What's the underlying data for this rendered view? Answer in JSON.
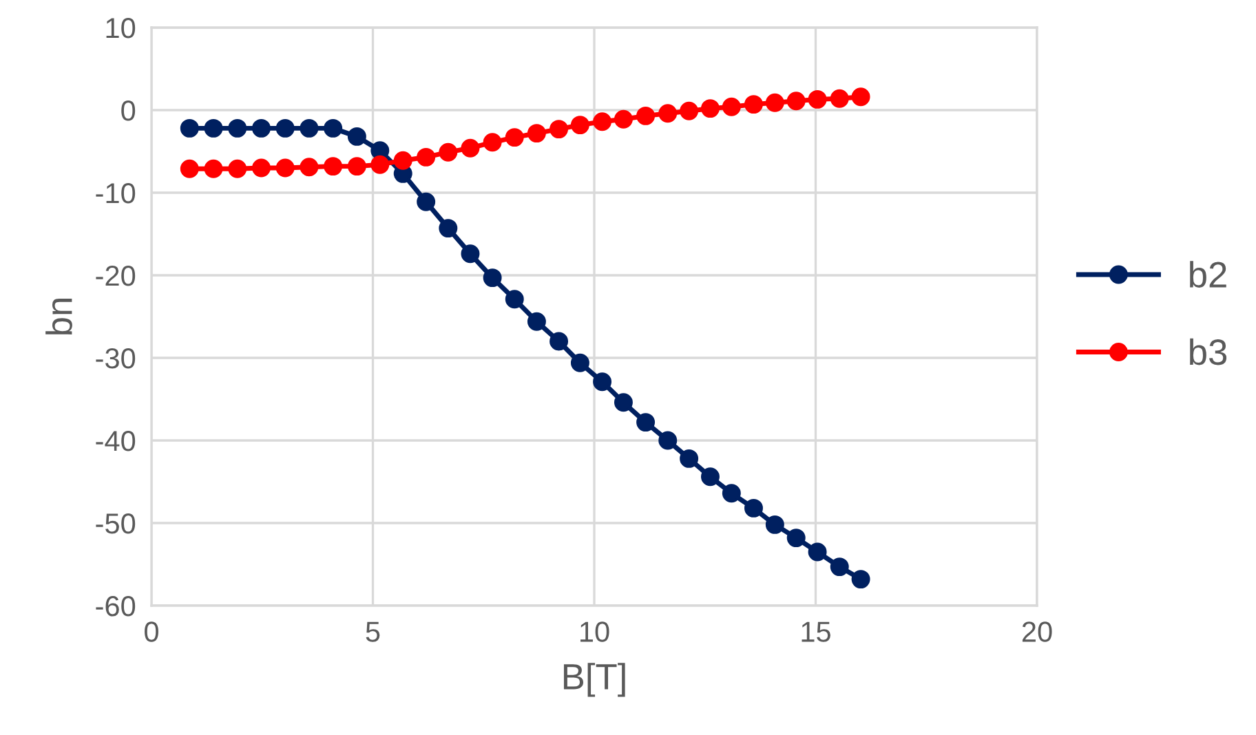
{
  "chart_data": {
    "type": "line",
    "xlabel": "B[T]",
    "ylabel": "bn",
    "x": [
      0.86,
      1.4,
      1.94,
      2.48,
      3.02,
      3.56,
      4.1,
      4.64,
      5.16,
      5.68,
      6.2,
      6.7,
      7.2,
      7.7,
      8.2,
      8.7,
      9.2,
      9.68,
      10.18,
      10.66,
      11.16,
      11.66,
      12.14,
      12.62,
      13.1,
      13.6,
      14.08,
      14.56,
      15.04,
      15.54,
      16.02
    ],
    "series": [
      {
        "name": "b2",
        "color": "#002060",
        "values": [
          -2.2,
          -2.2,
          -2.2,
          -2.2,
          -2.2,
          -2.2,
          -2.2,
          -3.2,
          -4.9,
          -7.7,
          -11.1,
          -14.3,
          -17.4,
          -20.3,
          -22.9,
          -25.6,
          -28.0,
          -30.6,
          -32.9,
          -35.4,
          -37.8,
          -40.0,
          -42.2,
          -44.4,
          -46.4,
          -48.2,
          -50.2,
          -51.8,
          -53.5,
          -55.3,
          -56.8
        ]
      },
      {
        "name": "b3",
        "color": "#ff0000",
        "values": [
          -7.1,
          -7.1,
          -7.1,
          -7.0,
          -7.0,
          -6.9,
          -6.8,
          -6.8,
          -6.6,
          -6.1,
          -5.7,
          -5.1,
          -4.6,
          -3.9,
          -3.3,
          -2.8,
          -2.3,
          -1.8,
          -1.4,
          -1.1,
          -0.7,
          -0.4,
          -0.1,
          0.2,
          0.4,
          0.7,
          0.9,
          1.1,
          1.3,
          1.4,
          1.6
        ]
      }
    ],
    "xlim": [
      0,
      20
    ],
    "xticks": [
      0,
      5,
      10,
      15,
      20
    ],
    "ylim": [
      -60,
      10
    ],
    "yticks": [
      -60,
      -50,
      -40,
      -30,
      -20,
      -10,
      0,
      10
    ],
    "grid": true,
    "legend": "right",
    "marker": "circle",
    "line_style": "solid"
  }
}
